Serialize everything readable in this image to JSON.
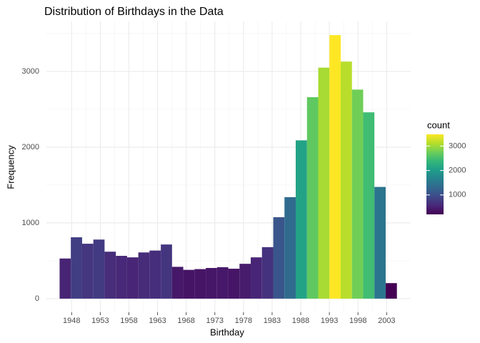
{
  "chart_data": {
    "type": "histogram",
    "title": "Distribution of Birthdays in the Data",
    "xlabel": "Birthday",
    "ylabel": "Frequency",
    "bins": [
      1945.9,
      1947.86,
      1949.83,
      1951.79,
      1953.75,
      1955.72,
      1957.68,
      1959.64,
      1961.6,
      1963.57,
      1965.53,
      1967.49,
      1969.46,
      1971.42,
      1973.38,
      1975.35,
      1977.31,
      1979.27,
      1981.23,
      1983.2,
      1985.16,
      1987.12,
      1989.09,
      1991.05,
      1993.01,
      1994.98,
      1996.94,
      1998.9,
      2000.86,
      2002.83,
      2004.79
    ],
    "values": [
      530,
      810,
      725,
      780,
      620,
      565,
      545,
      610,
      635,
      715,
      420,
      380,
      390,
      405,
      415,
      395,
      460,
      545,
      680,
      1075,
      1340,
      2090,
      2660,
      3050,
      3480,
      3130,
      2760,
      2460,
      1475,
      205
    ],
    "xlim": [
      1943.6,
      2007.2
    ],
    "xticks": [
      1948,
      1953,
      1958,
      1963,
      1968,
      1973,
      1978,
      1983,
      1988,
      1993,
      1998,
      2003
    ],
    "ylim": [
      -180,
      3660
    ],
    "yticks": [
      0,
      1000,
      2000,
      3000
    ],
    "grid": true,
    "palette": [
      "#440154",
      "#482878",
      "#3e4989",
      "#31688e",
      "#26828e",
      "#1f9e89",
      "#35b779",
      "#6ece58",
      "#b5de2b",
      "#fde725"
    ],
    "legend": {
      "title": "count",
      "ticks": [
        1000,
        2000,
        3000
      ],
      "position": "right"
    }
  }
}
